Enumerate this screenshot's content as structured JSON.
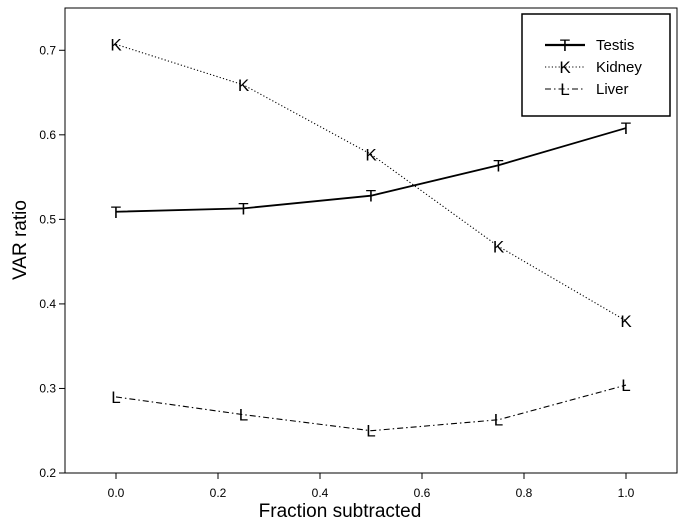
{
  "chart_data": {
    "type": "line",
    "xlabel": "Fraction subtracted",
    "ylabel": "VAR ratio",
    "xlim": [
      -0.1,
      1.1
    ],
    "ylim": [
      0.2,
      0.75
    ],
    "x_ticks": [
      "0.0",
      "0.2",
      "0.4",
      "0.6",
      "0.8",
      "1.0"
    ],
    "y_ticks": [
      "0.2",
      "0.3",
      "0.4",
      "0.5",
      "0.6",
      "0.7"
    ],
    "grid": false,
    "legend_position": "top-right",
    "x": [
      0.0,
      0.25,
      0.5,
      0.75,
      1.0
    ],
    "series": [
      {
        "name": "Testis",
        "marker": "T",
        "line_style": "solid",
        "values": [
          0.509,
          0.513,
          0.528,
          0.564,
          0.608
        ]
      },
      {
        "name": "Kidney",
        "marker": "K",
        "line_style": "dotted",
        "values": [
          0.707,
          0.659,
          0.577,
          0.468,
          0.38
        ]
      },
      {
        "name": "Liver",
        "marker": "L",
        "line_style": "dashdot",
        "values": [
          0.29,
          0.269,
          0.25,
          0.263,
          0.304
        ]
      }
    ]
  }
}
